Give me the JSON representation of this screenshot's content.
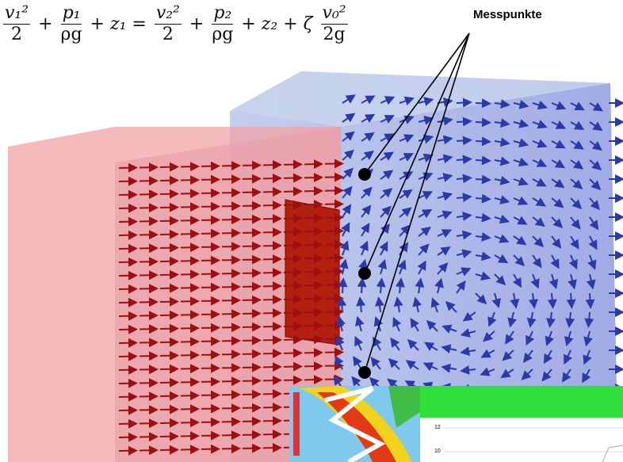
{
  "equation": {
    "items": [
      {
        "num": "v₁²",
        "den": "2"
      },
      {
        "text": "+"
      },
      {
        "num": "p₁",
        "den": "ρg"
      },
      {
        "text": "+ z₁ ="
      },
      {
        "num": "v₂²",
        "den": "2"
      },
      {
        "text": "+"
      },
      {
        "num": "p₂",
        "den": "ρg"
      },
      {
        "text": "+ z₂ + ζ"
      },
      {
        "num": "v₀²",
        "den": "2g"
      }
    ]
  },
  "annotation": "Messpunkte",
  "inset": {
    "labels": [
      "12",
      "10"
    ]
  }
}
